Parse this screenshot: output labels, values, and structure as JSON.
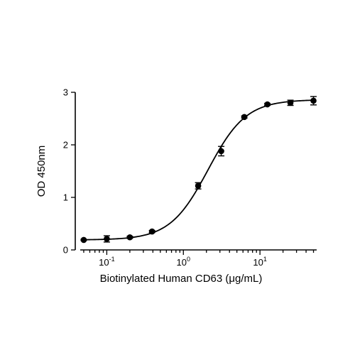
{
  "chart_data": {
    "type": "scatter",
    "title": "",
    "xlabel": "Biotinylated Human CD63 (μg/mL)",
    "ylabel": "OD 450nm",
    "xscale": "log",
    "xlim": [
      0.045,
      55
    ],
    "ylim": [
      0,
      3
    ],
    "x_ticks": [
      {
        "value": 0.1,
        "base": "10",
        "exp": "-1"
      },
      {
        "value": 1,
        "base": "10",
        "exp": "0"
      },
      {
        "value": 10,
        "base": "10",
        "exp": "1"
      }
    ],
    "y_ticks": [
      {
        "value": 0,
        "label": "0"
      },
      {
        "value": 1,
        "label": "1"
      },
      {
        "value": 2,
        "label": "2"
      },
      {
        "value": 3,
        "label": "3"
      }
    ],
    "grid": false,
    "legend": "none",
    "series": [
      {
        "points": [
          {
            "x": 0.05,
            "y": 0.19,
            "err": 0.01
          },
          {
            "x": 0.1,
            "y": 0.21,
            "err": 0.06
          },
          {
            "x": 0.2,
            "y": 0.24,
            "err": 0.02
          },
          {
            "x": 0.39,
            "y": 0.35,
            "err": 0.02
          },
          {
            "x": 1.56,
            "y": 1.22,
            "err": 0.06
          },
          {
            "x": 3.12,
            "y": 1.88,
            "err": 0.09
          },
          {
            "x": 6.25,
            "y": 2.53,
            "err": 0.02
          },
          {
            "x": 12.5,
            "y": 2.77,
            "err": 0.02
          },
          {
            "x": 25,
            "y": 2.8,
            "err": 0.05
          },
          {
            "x": 50,
            "y": 2.84,
            "err": 0.08
          }
        ],
        "fit": {
          "model": "4PL",
          "bottom": 0.19,
          "top": 2.86,
          "ec50": 2.1,
          "hill": 1.75
        }
      }
    ],
    "colors": {
      "axis": "#000000",
      "points": "#000000",
      "fit": "#000000"
    }
  }
}
